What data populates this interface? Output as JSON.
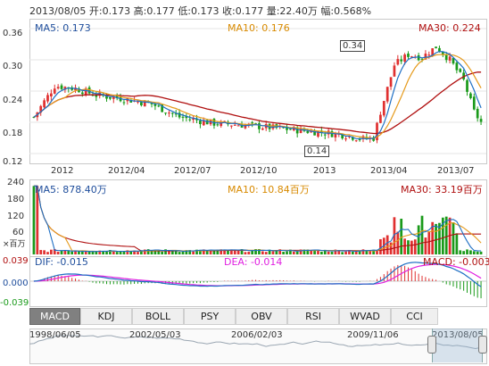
{
  "header": {
    "date": "2013/08/05",
    "open": "开:0.173",
    "high": "高:0.177",
    "low": "低:0.173",
    "close": "收:0.177",
    "volume": "量:22.40万",
    "change": "幅:0.568%"
  },
  "main_chart": {
    "ma5": "MA5: 0.173",
    "ma10": "MA10: 0.176",
    "ma30": "MA30: 0.224",
    "high_marker": "0.34",
    "low_marker": "0.14",
    "y_ticks": [
      "0.36",
      "0.30",
      "0.24",
      "0.18",
      "0.12"
    ],
    "x_ticks": [
      "2012",
      "2012/04",
      "2012/07",
      "2012/10",
      "2013",
      "2013/04",
      "2013/07"
    ]
  },
  "volume_chart": {
    "ma5": "MA5: 878.40万",
    "ma10": "MA10: 10.84百万",
    "ma30": "MA30: 33.19百万",
    "y_ticks": [
      "240",
      "180",
      "120",
      "60"
    ],
    "unit": "×百万"
  },
  "macd_chart": {
    "dif": "DIF: -0.015",
    "dea": "DEA: -0.014",
    "macd": "MACD: -0.003",
    "y_ticks": [
      "0.039",
      "0.000",
      "-0.039"
    ]
  },
  "tabs": [
    "MACD",
    "KDJ",
    "BOLL",
    "PSY",
    "OBV",
    "RSI",
    "WVAD",
    "CCI"
  ],
  "active_tab": "MACD",
  "navigator": {
    "dates": [
      "1998/06/05",
      "2002/05/03",
      "2006/02/03",
      "2009/11/06",
      "2013/08/05"
    ]
  },
  "colors": {
    "up": "#e03030",
    "down": "#1a9a1a",
    "ma5": "#1f6fc4",
    "ma10": "#e59a1b",
    "ma30": "#b01010",
    "dea": "#e020e0",
    "label_blue": "#1f4e9c",
    "label_orange": "#d88a00",
    "label_red": "#b01010"
  }
}
